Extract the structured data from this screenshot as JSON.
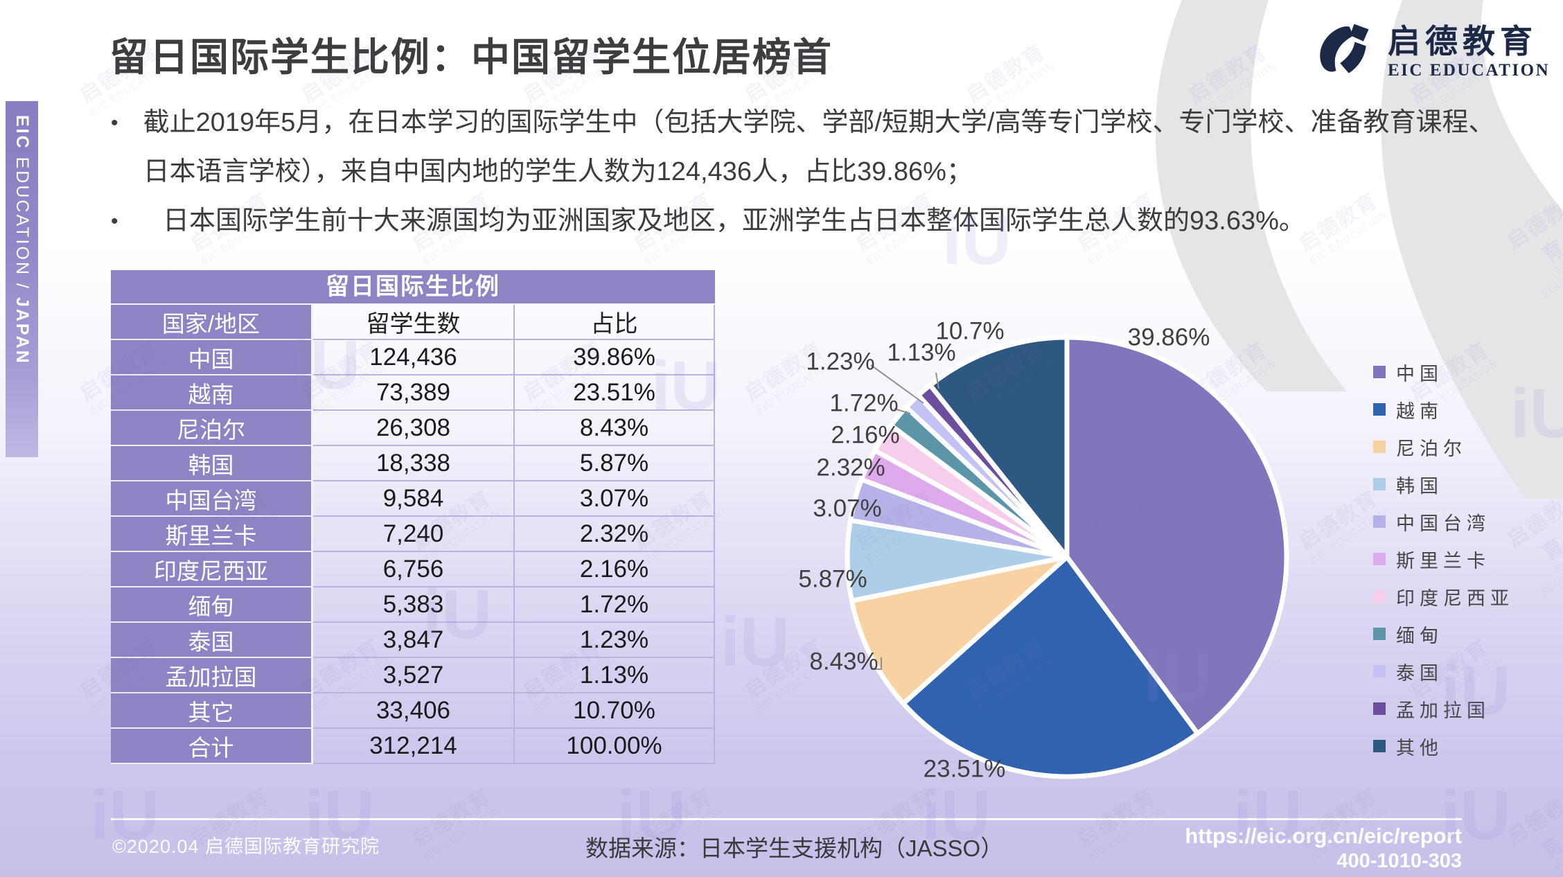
{
  "slide": {
    "title": "留日国际学生比例：中国留学生位居榜首",
    "bullets": [
      "截止2019年5月，在日本学习的国际学生中（包括大学院、学部/短期大学/高等专门学校、专门学校、准备教育课程、日本语言学校），来自中国内地的学生人数为124,436人，占比39.86%；",
      "日本国际学生前十大来源国均为亚洲国家及地区，亚洲学生占日本整体国际学生总人数的93.63%。"
    ]
  },
  "logo": {
    "cn": "启德教育",
    "en": "EIC EDUCATION"
  },
  "sidebar": {
    "brand": "EIC",
    "mid": " EDUCATION / ",
    "region": "JAPAN"
  },
  "table": {
    "title": "留日国际生比例",
    "columns": [
      "国家/地区",
      "留学生数",
      "占比"
    ],
    "rows": [
      [
        "中国",
        "124,436",
        "39.86%"
      ],
      [
        "越南",
        "73,389",
        "23.51%"
      ],
      [
        "尼泊尔",
        "26,308",
        "8.43%"
      ],
      [
        "韩国",
        "18,338",
        "5.87%"
      ],
      [
        "中国台湾",
        "9,584",
        "3.07%"
      ],
      [
        "斯里兰卡",
        "7,240",
        "2.32%"
      ],
      [
        "印度尼西亚",
        "6,756",
        "2.16%"
      ],
      [
        "缅甸",
        "5,383",
        "1.72%"
      ],
      [
        "泰国",
        "3,847",
        "1.23%"
      ],
      [
        "孟加拉国",
        "3,527",
        "1.13%"
      ],
      [
        "其它",
        "33,406",
        "10.70%"
      ],
      [
        "合计",
        "312,214",
        "100.00%"
      ]
    ]
  },
  "chart_data": {
    "type": "pie",
    "title": "留日国际生比例",
    "legend_position": "right",
    "start_angle_deg": 0,
    "direction": "clockwise",
    "series": [
      {
        "name": "中国",
        "value": 39.86,
        "label": "39.86%",
        "color": "#8176bc"
      },
      {
        "name": "越南",
        "value": 23.51,
        "label": "23.51%",
        "color": "#3162b0"
      },
      {
        "name": "尼泊尔",
        "value": 8.43,
        "label": "8.43%",
        "color": "#f9d2a3"
      },
      {
        "name": "韩国",
        "value": 5.87,
        "label": "5.87%",
        "color": "#aecde9"
      },
      {
        "name": "中国台湾",
        "value": 3.07,
        "label": "3.07%",
        "color": "#b5b2e8"
      },
      {
        "name": "斯里兰卡",
        "value": 2.32,
        "label": "2.32%",
        "color": "#dfaaec"
      },
      {
        "name": "印度尼西亚",
        "value": 2.16,
        "label": "2.16%",
        "color": "#f7cdec"
      },
      {
        "name": "缅甸",
        "value": 1.72,
        "label": "1.72%",
        "color": "#5c95a8"
      },
      {
        "name": "泰国",
        "value": 1.23,
        "label": "1.23%",
        "color": "#c4c2f4"
      },
      {
        "name": "孟加拉国",
        "value": 1.13,
        "label": "1.13%",
        "color": "#6c4e9e"
      },
      {
        "name": "其他",
        "value": 10.7,
        "label": "10.7%",
        "color": "#2e5781"
      }
    ]
  },
  "footer": {
    "copyright": "©2020.04 启德国际教育研究院",
    "source": "数据来源：日本学生支援机构（JASSO）",
    "url": "https://eic.org.cn/eic/report",
    "phone": "400-1010-303"
  },
  "watermark": {
    "cn": "启德教育",
    "en": "EIC EDUCATION",
    "mark": "iU"
  }
}
